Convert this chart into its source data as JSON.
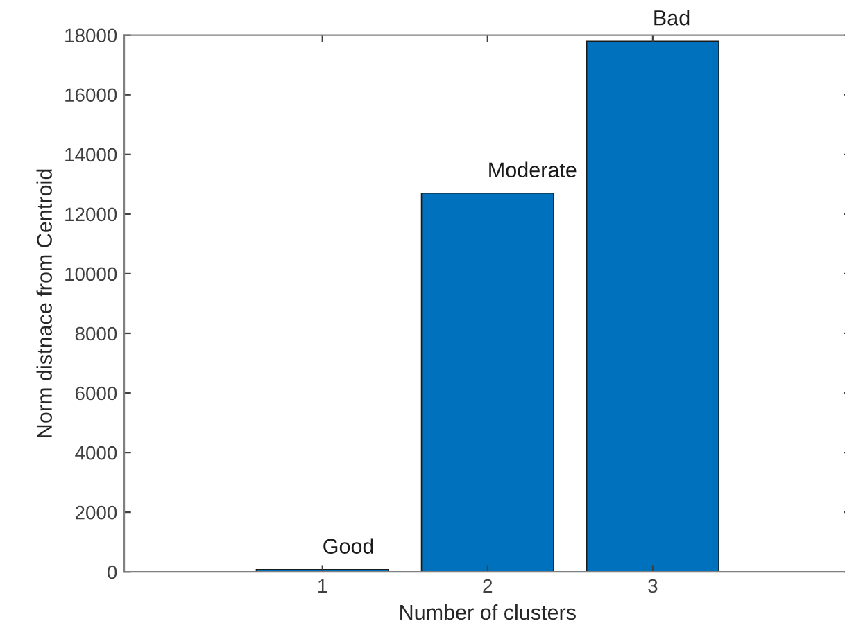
{
  "chart_data": {
    "type": "bar",
    "xlabel": "Number of clusters",
    "ylabel": "Norm distnace from Centroid",
    "categories": [
      "1",
      "2",
      "3"
    ],
    "values": [
      80,
      12700,
      17800
    ],
    "color": "#0072bd",
    "ylim": [
      0,
      18000
    ],
    "yticks": [
      0,
      2000,
      4000,
      6000,
      8000,
      10000,
      12000,
      14000,
      16000,
      18000
    ],
    "grid": false,
    "annotations": [
      {
        "text": "Good",
        "x": "1",
        "y": 80
      },
      {
        "text": "Moderate",
        "x": "2",
        "y": 12700
      },
      {
        "text": "Bad",
        "x": "3",
        "y": 17800
      }
    ]
  }
}
